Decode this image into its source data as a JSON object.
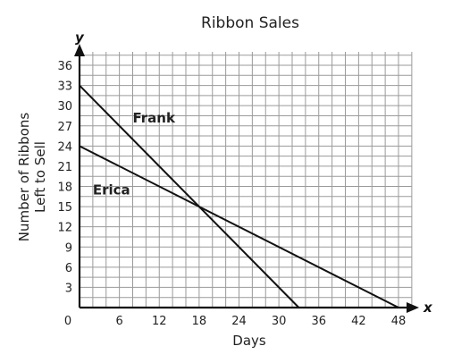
{
  "chart_data": {
    "type": "line",
    "title": "Ribbon Sales",
    "xlabel": "Days",
    "ylabel_lines": [
      "Number of Ribbons",
      "Left to Sell"
    ],
    "x_axis_letter": "x",
    "y_axis_letter": "y",
    "xlim": [
      0,
      50
    ],
    "ylim": [
      0,
      38
    ],
    "grid": true,
    "grid_x_step": 2,
    "grid_y_step": 1.5,
    "x_ticks": [
      0,
      6,
      12,
      18,
      24,
      30,
      36,
      42,
      48
    ],
    "y_ticks": [
      3,
      6,
      9,
      12,
      15,
      18,
      21,
      24,
      27,
      30,
      33,
      36
    ],
    "series": [
      {
        "name": "Frank",
        "x": [
          0,
          33
        ],
        "y": [
          33,
          0
        ],
        "label_at": {
          "x": 8,
          "y": 27.5
        }
      },
      {
        "name": "Erica",
        "x": [
          0,
          48
        ],
        "y": [
          24,
          0
        ],
        "label_at": {
          "x": 2,
          "y": 16.8
        }
      }
    ]
  }
}
